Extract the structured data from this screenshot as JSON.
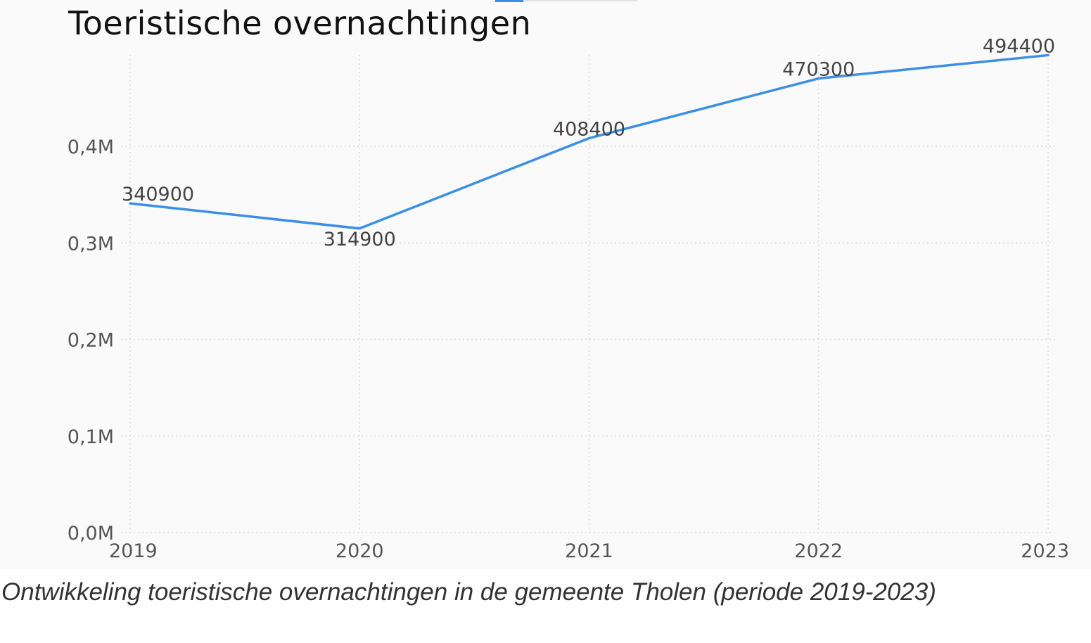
{
  "chart_data": {
    "type": "line",
    "title": "Toeristische overnachtingen",
    "x": [
      "2019",
      "2020",
      "2021",
      "2022",
      "2023"
    ],
    "series": [
      {
        "values": [
          340900,
          314900,
          408400,
          470300,
          494400
        ],
        "data_labels": [
          "340900",
          "314900",
          "408400",
          "470300",
          "494400"
        ],
        "color": "#3b8fe6"
      }
    ],
    "y_ticks": [
      {
        "value": 0,
        "label": "0,0M"
      },
      {
        "value": 100000,
        "label": "0,1M"
      },
      {
        "value": 200000,
        "label": "0,2M"
      },
      {
        "value": 300000,
        "label": "0,3M"
      },
      {
        "value": 400000,
        "label": "0,4M"
      }
    ],
    "ylim": [
      0,
      500000
    ],
    "xlabel": "",
    "ylabel": "",
    "grid": true,
    "legend": "top"
  },
  "caption": "Ontwikkeling toeristische overnachtingen in de gemeente Tholen (periode 2019-2023)"
}
